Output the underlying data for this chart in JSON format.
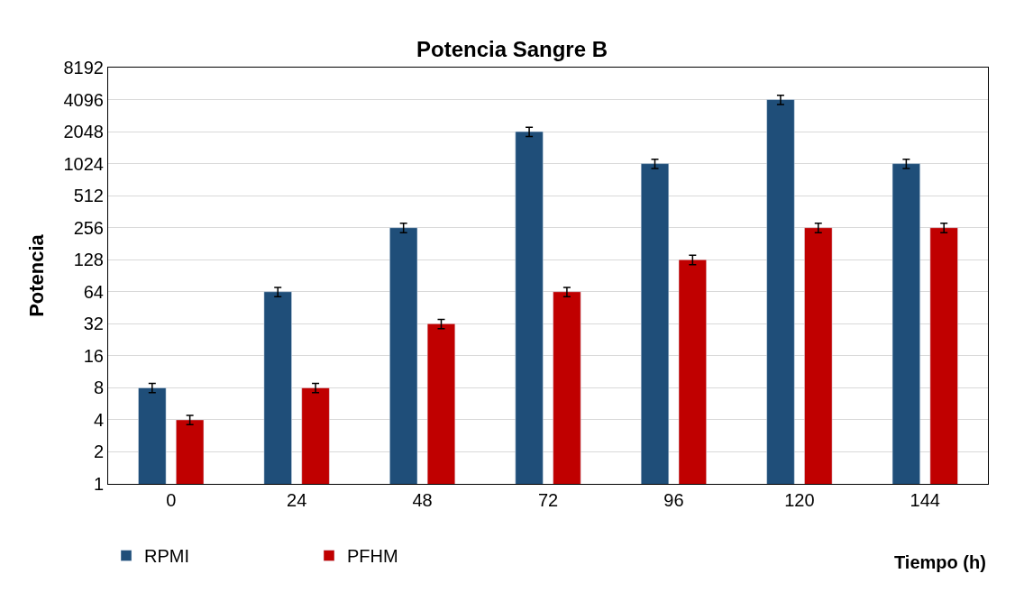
{
  "chart_data": {
    "type": "bar",
    "title": "Potencia Sangre B",
    "xlabel": "Tiempo (h)",
    "ylabel": "Potencia",
    "categories": [
      "0",
      "24",
      "48",
      "72",
      "96",
      "120",
      "144"
    ],
    "series": [
      {
        "name": "RPMI",
        "color": "#1f4e79",
        "values": [
          8,
          64,
          256,
          2048,
          1024,
          4096,
          1024
        ],
        "errors": [
          0.8,
          6.4,
          26,
          205,
          102,
          410,
          102
        ]
      },
      {
        "name": "PFHM",
        "color": "#c00000",
        "values": [
          4,
          8,
          32,
          64,
          128,
          256,
          256
        ],
        "errors": [
          0.4,
          0.8,
          3.2,
          6.4,
          13,
          26,
          26
        ]
      }
    ],
    "log": "y",
    "ylim": [
      1,
      8192
    ],
    "yticks": [
      1,
      2,
      4,
      8,
      16,
      32,
      64,
      128,
      256,
      512,
      1024,
      2048,
      4096,
      8192
    ],
    "grid": "y",
    "legend": "bottom left"
  }
}
